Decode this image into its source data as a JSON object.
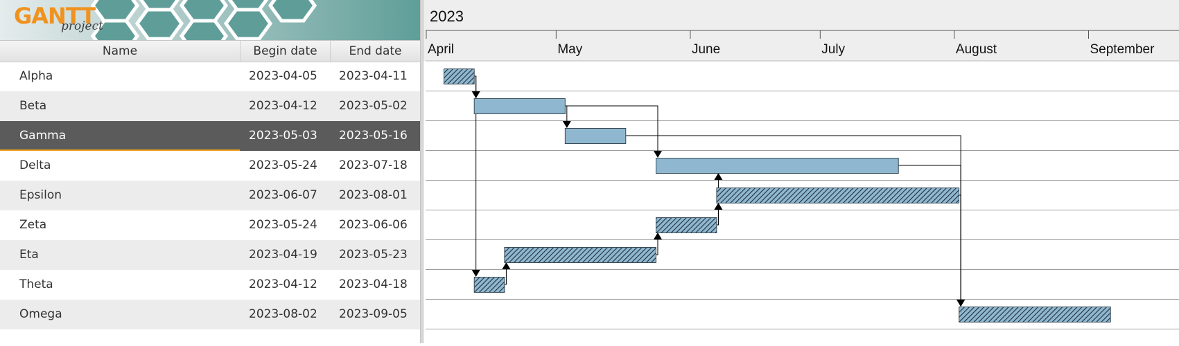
{
  "app": {
    "logo_word": "GANTT",
    "logo_sub": "project"
  },
  "table": {
    "columns": {
      "name": "Name",
      "begin": "Begin date",
      "end": "End date"
    },
    "tasks": [
      {
        "name": "Alpha",
        "begin": "2023-04-05",
        "end": "2023-04-11",
        "style": "hatched",
        "selected": false
      },
      {
        "name": "Beta",
        "begin": "2023-04-12",
        "end": "2023-05-02",
        "style": "solid",
        "selected": false
      },
      {
        "name": "Gamma",
        "begin": "2023-05-03",
        "end": "2023-05-16",
        "style": "solid",
        "selected": true
      },
      {
        "name": "Delta",
        "begin": "2023-05-24",
        "end": "2023-07-18",
        "style": "solid",
        "selected": false
      },
      {
        "name": "Epsilon",
        "begin": "2023-06-07",
        "end": "2023-08-01",
        "style": "hatched",
        "selected": false
      },
      {
        "name": "Zeta",
        "begin": "2023-05-24",
        "end": "2023-06-06",
        "style": "hatched",
        "selected": false
      },
      {
        "name": "Eta",
        "begin": "2023-04-19",
        "end": "2023-05-23",
        "style": "hatched",
        "selected": false
      },
      {
        "name": "Theta",
        "begin": "2023-04-12",
        "end": "2023-04-18",
        "style": "hatched",
        "selected": false
      },
      {
        "name": "Omega",
        "begin": "2023-08-02",
        "end": "2023-09-05",
        "style": "hatched",
        "selected": false
      }
    ]
  },
  "timeline": {
    "year": "2023",
    "months": [
      {
        "label": "April",
        "start": "2023-04-01"
      },
      {
        "label": "May",
        "start": "2023-05-01"
      },
      {
        "label": "June",
        "start": "2023-06-01"
      },
      {
        "label": "July",
        "start": "2023-07-01"
      },
      {
        "label": "August",
        "start": "2023-08-01"
      },
      {
        "label": "September",
        "start": "2023-09-01"
      }
    ],
    "dependencies": [
      {
        "from": "Alpha",
        "to": "Beta",
        "type": "finish-start"
      },
      {
        "from": "Alpha",
        "to": "Theta",
        "type": "finish-start"
      },
      {
        "from": "Beta",
        "to": "Gamma",
        "type": "finish-start"
      },
      {
        "from": "Beta",
        "to": "Delta",
        "type": "finish-start"
      },
      {
        "from": "Gamma",
        "to": "Omega",
        "type": "finish-start"
      },
      {
        "from": "Delta",
        "to": "Omega",
        "type": "finish-start"
      },
      {
        "from": "Epsilon",
        "to": "Omega",
        "type": "finish-start"
      },
      {
        "from": "Theta",
        "to": "Eta",
        "type": "finish-start"
      },
      {
        "from": "Eta",
        "to": "Zeta",
        "type": "finish-start"
      },
      {
        "from": "Zeta",
        "to": "Delta",
        "type": "finish-start"
      },
      {
        "from": "Zeta",
        "to": "Epsilon",
        "type": "finish-start"
      }
    ],
    "colors": {
      "bar": "#8fb7d0",
      "bar_border": "#3a4a56",
      "hatch": "#1f2f3a",
      "grid": "#9c9c9c",
      "header_bg": "#eeeeee"
    }
  }
}
